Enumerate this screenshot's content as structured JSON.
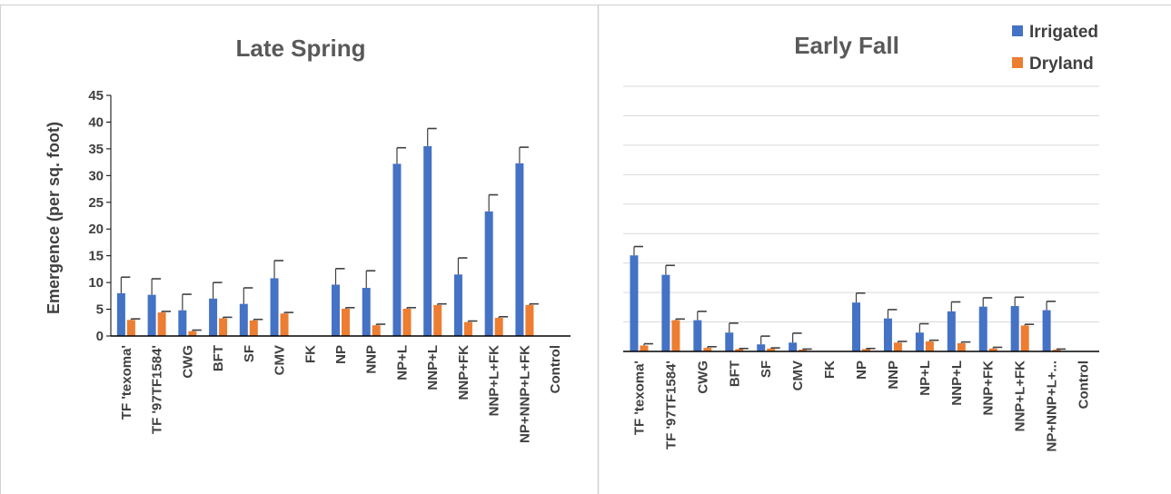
{
  "colors": {
    "irrigated": "#4472C4",
    "dryland": "#ED7D31",
    "grid": "#D9D9D9",
    "axis": "#000000",
    "border": "#D0D0D0",
    "errorbar": "#404040"
  },
  "legend": {
    "irrigated": "Irrigated",
    "dryland": "Dryland",
    "placement": "top-right"
  },
  "chart_data": [
    {
      "type": "bar",
      "title": "Late Spring",
      "ylabel": "Emergence (per sq. foot)",
      "xlabel": "",
      "ylim": [
        0,
        45
      ],
      "yticks": [
        "0",
        "5",
        "10",
        "15",
        "20",
        "25",
        "30",
        "35",
        "40",
        "45"
      ],
      "grid": false,
      "categories": [
        "TF 'texoma'",
        "TF '97TF1584'",
        "CWG",
        "BFT",
        "SF",
        "CMV",
        "FK",
        "NP",
        "NNP",
        "NP+L",
        "NNP+L",
        "NNP+FK",
        "NNP+L+FK",
        "NP+NNP+L+FK",
        "Control"
      ],
      "series": [
        {
          "name": "Irrigated",
          "values": [
            8,
            7.7,
            4.8,
            7,
            6,
            10.8,
            0,
            9.6,
            9,
            32.2,
            35.5,
            11.5,
            23.3,
            32.3,
            0
          ],
          "errors": [
            3,
            3,
            3,
            3,
            3,
            3.3,
            0,
            3,
            3.2,
            3,
            3.3,
            3.1,
            3.1,
            3,
            0
          ]
        },
        {
          "name": "Dryland",
          "values": [
            3,
            4.4,
            0.9,
            3.3,
            2.9,
            4.2,
            0,
            5.1,
            2,
            5.1,
            5.8,
            2.6,
            3.4,
            5.8,
            0
          ],
          "errors": [
            0.2,
            0.2,
            0.2,
            0.2,
            0.2,
            0.2,
            0,
            0.2,
            0.2,
            0.2,
            0.2,
            0.2,
            0.2,
            0.2,
            0
          ]
        }
      ]
    },
    {
      "type": "bar",
      "title": "Early Fall",
      "ylabel": "",
      "xlabel": "",
      "ylim": [
        0,
        45
      ],
      "grid": true,
      "categories": [
        "TF 'texoma'",
        "TF '97TF1584'",
        "CWG",
        "BFT",
        "SF",
        "CMV",
        "FK",
        "NP",
        "NNP",
        "NP+L",
        "NNP+L",
        "NNP+FK",
        "NNP+L+FK",
        "NP+NNP+L+...",
        "Control"
      ],
      "series": [
        {
          "name": "Irrigated",
          "values": [
            16.3,
            13,
            5.3,
            3.2,
            1.2,
            1.5,
            0,
            8.3,
            5.6,
            3.2,
            6.8,
            7.6,
            7.7,
            7,
            0
          ],
          "errors": [
            1.5,
            1.6,
            1.5,
            1.6,
            1.4,
            1.6,
            0,
            1.6,
            1.5,
            1.5,
            1.6,
            1.5,
            1.5,
            1.5,
            0
          ]
        },
        {
          "name": "Dryland",
          "values": [
            1,
            5.3,
            0.6,
            0.4,
            0.5,
            0.3,
            0,
            0.4,
            1.5,
            1.7,
            1.4,
            0.5,
            4.4,
            0.3,
            0
          ],
          "errors": [
            0.3,
            0.2,
            0.2,
            0.1,
            0.1,
            0.1,
            0,
            0.1,
            0.2,
            0.2,
            0.2,
            0.2,
            0.2,
            0.1,
            0
          ]
        }
      ]
    }
  ]
}
